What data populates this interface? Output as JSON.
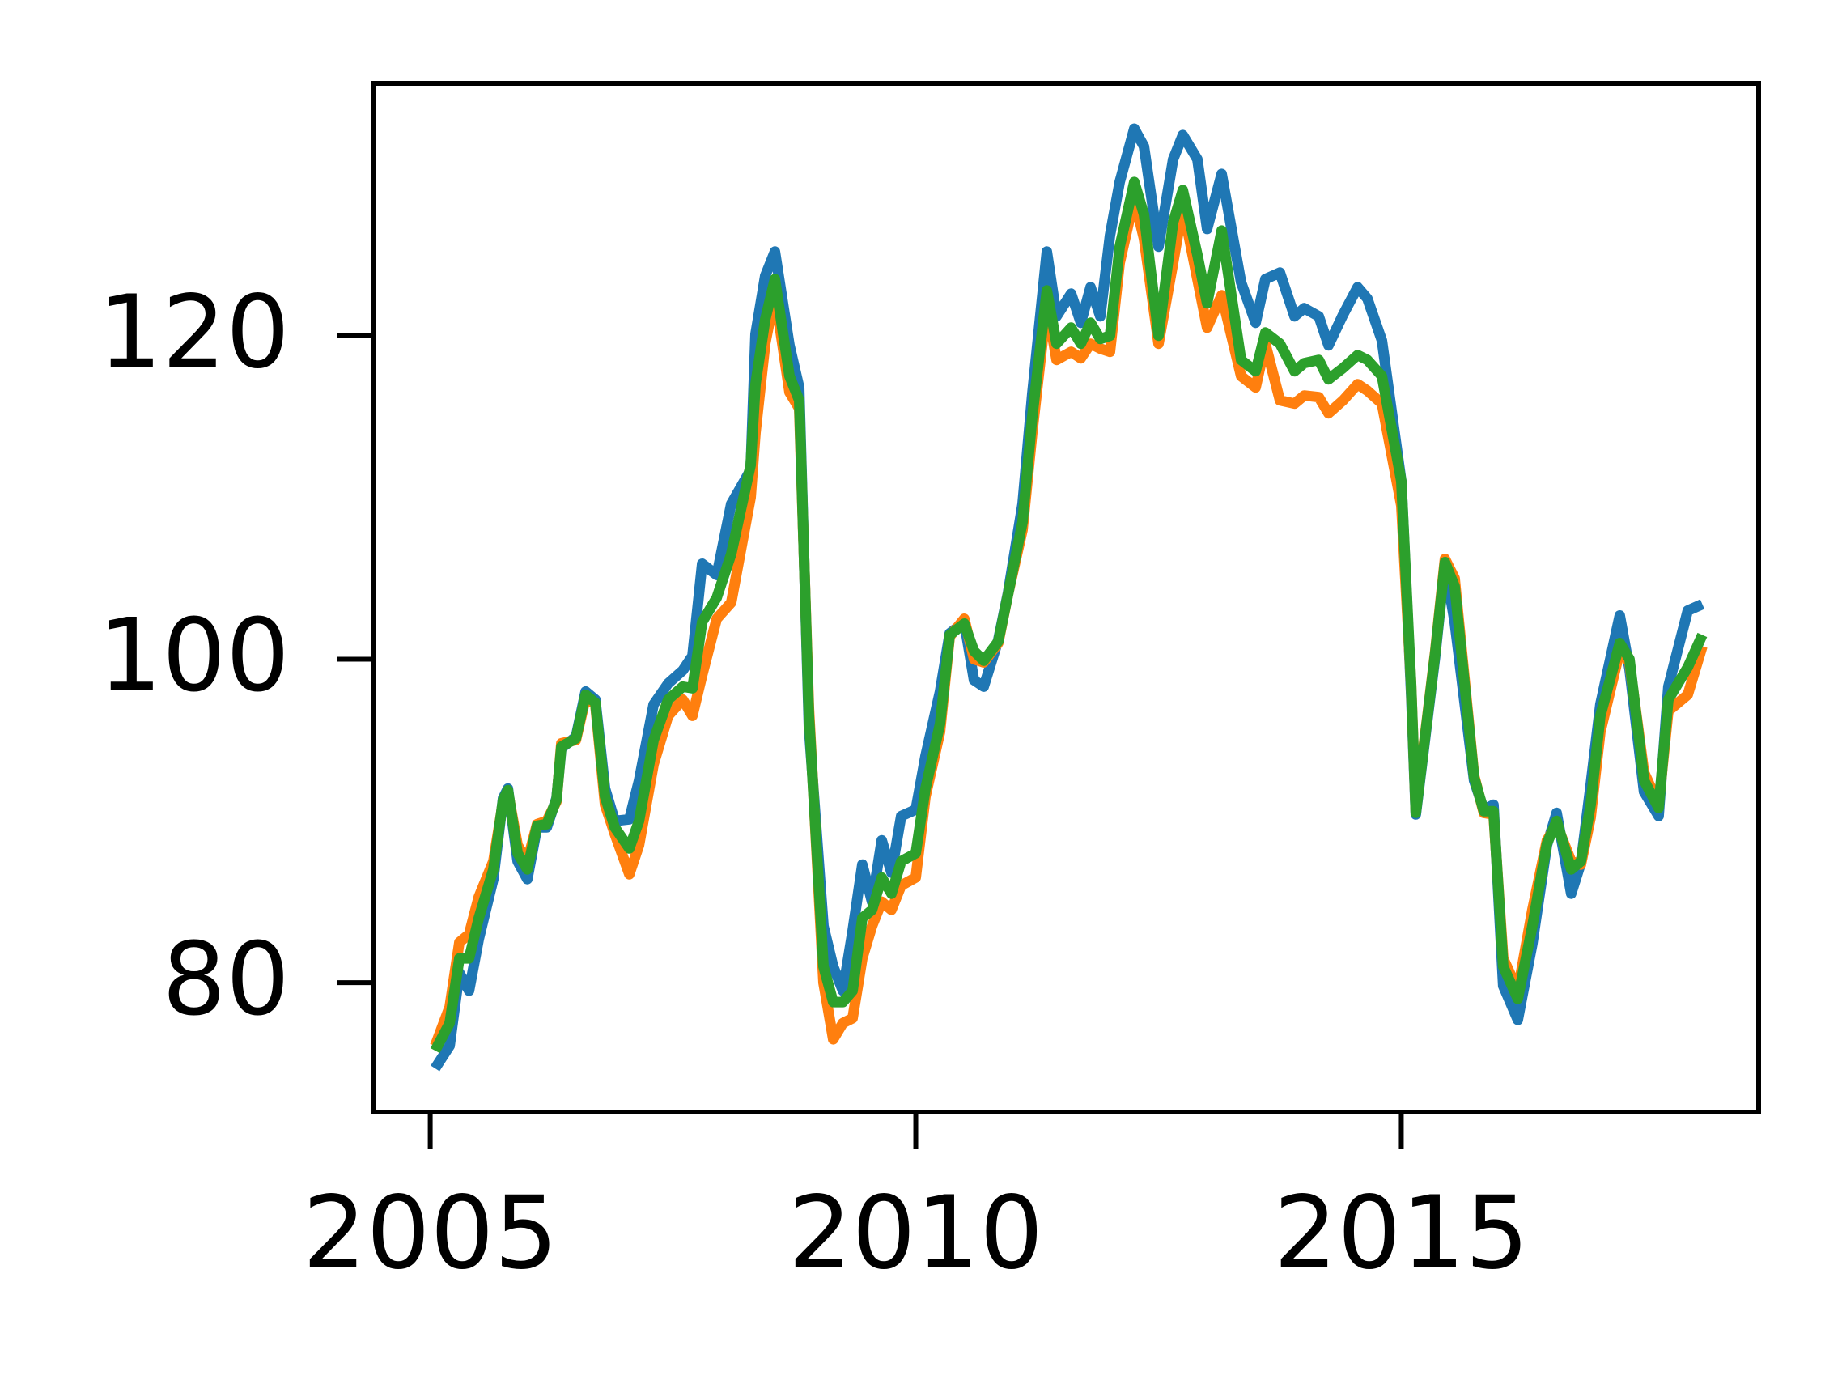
{
  "chart_data": {
    "type": "line",
    "x": [
      2005.05,
      2005.2,
      2005.3,
      2005.4,
      2005.5,
      2005.65,
      2005.75,
      2005.8,
      2005.9,
      2006.0,
      2006.1,
      2006.2,
      2006.3,
      2006.35,
      2006.5,
      2006.6,
      2006.7,
      2006.8,
      2006.9,
      2007.05,
      2007.15,
      2007.3,
      2007.45,
      2007.6,
      2007.7,
      2007.8,
      2007.95,
      2008.1,
      2008.3,
      2008.35,
      2008.45,
      2008.55,
      2008.7,
      2008.8,
      2008.9,
      2009.05,
      2009.15,
      2009.25,
      2009.35,
      2009.45,
      2009.55,
      2009.65,
      2009.75,
      2009.85,
      2010.0,
      2010.1,
      2010.25,
      2010.35,
      2010.5,
      2010.6,
      2010.7,
      2010.85,
      2010.95,
      2011.1,
      2011.2,
      2011.35,
      2011.45,
      2011.6,
      2011.7,
      2011.8,
      2011.9,
      2012.0,
      2012.1,
      2012.25,
      2012.35,
      2012.5,
      2012.65,
      2012.75,
      2012.9,
      2013.0,
      2013.15,
      2013.35,
      2013.5,
      2013.6,
      2013.75,
      2013.9,
      2014.0,
      2014.15,
      2014.25,
      2014.4,
      2014.55,
      2014.65,
      2014.8,
      2015.0,
      2015.1,
      2015.15,
      2015.35,
      2015.45,
      2015.55,
      2015.75,
      2015.85,
      2015.95,
      2016.05,
      2016.2,
      2016.35,
      2016.5,
      2016.6,
      2016.75,
      2016.85,
      2016.95,
      2017.05,
      2017.25,
      2017.35,
      2017.5,
      2017.65,
      2017.75,
      2017.95,
      2018.1
    ],
    "series": [
      {
        "color": "#1f77b4",
        "values": [
          74.7,
          76.1,
          80.6,
          79.5,
          82.7,
          86.4,
          91.4,
          92.0,
          87.5,
          86.4,
          89.6,
          89.6,
          91.4,
          94.5,
          95.2,
          98.0,
          97.5,
          92.0,
          90.0,
          90.1,
          92.5,
          97.2,
          98.5,
          99.3,
          100.2,
          105.9,
          105.2,
          109.6,
          111.7,
          120.1,
          123.7,
          125.2,
          119.4,
          116.8,
          95.8,
          83.5,
          81.0,
          79.5,
          83.2,
          87.3,
          85.0,
          88.8,
          86.8,
          90.3,
          90.7,
          94.0,
          98.0,
          101.6,
          102.3,
          98.7,
          98.3,
          101.2,
          104.1,
          109.6,
          116.4,
          125.2,
          121.2,
          122.6,
          120.8,
          123.0,
          121.2,
          126.2,
          129.5,
          132.8,
          131.7,
          125.5,
          130.9,
          132.4,
          130.9,
          126.6,
          130.0,
          123.3,
          120.8,
          123.5,
          123.9,
          121.2,
          121.7,
          121.2,
          119.4,
          121.3,
          123.0,
          122.3,
          119.7,
          111.0,
          98.0,
          90.4,
          100.2,
          105.9,
          102.3,
          92.5,
          90.7,
          91.0,
          79.8,
          77.7,
          82.4,
          88.5,
          90.5,
          85.5,
          87.4,
          92.2,
          97.2,
          102.7,
          99.4,
          91.8,
          90.3,
          98.3,
          103.0,
          103.4
        ]
      },
      {
        "color": "#ff7f0e",
        "values": [
          76.1,
          78.5,
          82.5,
          83.0,
          85.3,
          87.5,
          91.2,
          91.8,
          88.5,
          87.5,
          89.8,
          90.0,
          91.2,
          94.8,
          95.0,
          97.6,
          97.2,
          91.0,
          89.2,
          86.7,
          88.5,
          93.5,
          96.5,
          97.5,
          96.5,
          99.0,
          102.5,
          103.5,
          110.0,
          114.0,
          119.5,
          122.6,
          116.5,
          115.5,
          97.0,
          80.0,
          76.5,
          77.5,
          77.8,
          81.5,
          83.5,
          85.0,
          84.5,
          86.0,
          86.5,
          91.5,
          95.5,
          101.4,
          102.5,
          100.0,
          99.8,
          101.0,
          104.0,
          108.0,
          114.0,
          122.0,
          118.5,
          119.0,
          118.6,
          119.5,
          119.2,
          119.0,
          124.5,
          128.5,
          126.0,
          119.5,
          124.5,
          128.0,
          123.5,
          120.5,
          122.5,
          117.5,
          116.8,
          119.5,
          116.0,
          115.8,
          116.3,
          116.2,
          115.2,
          116.0,
          117.0,
          116.6,
          115.8,
          109.5,
          98.5,
          90.6,
          100.5,
          106.2,
          105.0,
          92.8,
          90.5,
          90.4,
          81.5,
          79.5,
          84.5,
          88.8,
          89.8,
          87.5,
          87.3,
          90.2,
          95.5,
          100.5,
          99.8,
          93.0,
          91.0,
          96.8,
          97.8,
          100.8
        ]
      },
      {
        "color": "#2ca02c",
        "values": [
          75.8,
          77.5,
          81.5,
          81.5,
          84.0,
          87.0,
          91.3,
          91.9,
          88.0,
          87.0,
          89.7,
          89.8,
          91.3,
          94.6,
          95.1,
          97.8,
          97.3,
          91.5,
          89.6,
          88.3,
          90.0,
          95.0,
          97.5,
          98.3,
          98.2,
          102.3,
          103.8,
          106.5,
          112.0,
          117.0,
          121.0,
          123.5,
          117.5,
          116.0,
          96.5,
          81.0,
          78.8,
          78.8,
          79.5,
          84.0,
          84.5,
          86.5,
          85.5,
          87.5,
          88.0,
          92.0,
          96.0,
          101.5,
          102.2,
          100.5,
          99.9,
          101.1,
          104.0,
          108.5,
          115.0,
          122.8,
          119.5,
          120.5,
          119.5,
          120.8,
          119.8,
          120.0,
          125.5,
          129.5,
          127.5,
          120.0,
          127.0,
          129.0,
          125.0,
          122.0,
          126.5,
          118.5,
          117.8,
          120.2,
          119.5,
          117.8,
          118.3,
          118.5,
          117.3,
          118.0,
          118.8,
          118.5,
          117.5,
          111.0,
          98.5,
          90.5,
          100.4,
          106.0,
          104.5,
          92.7,
          90.6,
          90.6,
          81.0,
          79.0,
          83.5,
          88.6,
          90.0,
          87.0,
          87.5,
          91.0,
          96.5,
          101.0,
          100.0,
          92.5,
          90.8,
          97.5,
          99.5,
          101.5
        ]
      }
    ],
    "xlim": [
      2004.42,
      2018.68
    ],
    "xticks": [
      2005,
      2010,
      2015
    ],
    "ylim": [
      72,
      135.6
    ],
    "yticks": [
      80,
      100,
      120
    ],
    "grid": false
  }
}
